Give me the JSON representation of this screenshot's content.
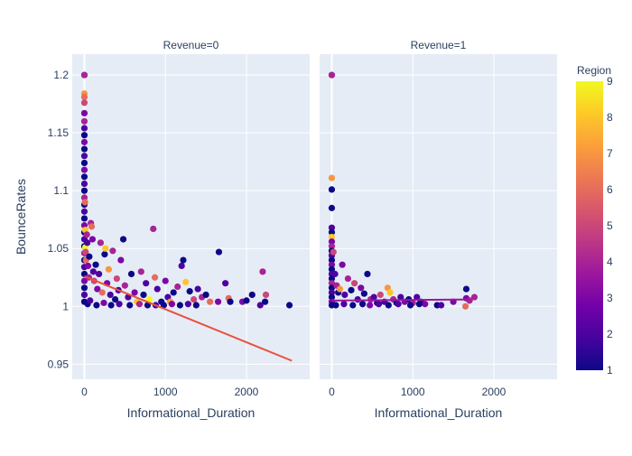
{
  "chart_data": {
    "type": "scatter",
    "facet_titles": [
      "Revenue=0",
      "Revenue=1"
    ],
    "xlabel": "Informational_Duration",
    "ylabel": "BounceRates",
    "xlim": [
      -150,
      2780
    ],
    "ylim": [
      0.937,
      1.218
    ],
    "x_ticks": [
      0,
      1000,
      2000
    ],
    "x_tick_labels": [
      "0",
      "1000",
      "2000"
    ],
    "y_ticks": [
      0.95,
      1,
      1.05,
      1.1,
      1.15,
      1.2
    ],
    "y_tick_labels": [
      "0.95",
      "1",
      "1.05",
      "1.1",
      "1.15",
      "1.2"
    ],
    "grid": true,
    "colorbar": {
      "title": "Region",
      "min": 1,
      "max": 9,
      "ticks": [
        1,
        2,
        3,
        4,
        5,
        6,
        7,
        8,
        9
      ],
      "tick_labels": [
        "1",
        "2",
        "3",
        "4",
        "5",
        "6",
        "7",
        "8",
        "9"
      ],
      "colorscale": [
        "#0d0887",
        "#46039f",
        "#7201a8",
        "#9c179e",
        "#bd3786",
        "#d8576b",
        "#ed7953",
        "#fb9f3a",
        "#fdca26",
        "#f0f921"
      ]
    },
    "series": [
      {
        "facet": "Revenue=0",
        "points": [
          [
            0,
            1.2,
            3
          ],
          [
            0,
            1.2,
            4
          ],
          [
            0,
            1.184,
            7
          ],
          [
            0,
            1.181,
            6
          ],
          [
            0,
            1.176,
            5
          ],
          [
            0,
            1.167,
            3
          ],
          [
            0,
            1.16,
            4
          ],
          [
            0,
            1.154,
            2
          ],
          [
            0,
            1.148,
            1
          ],
          [
            0,
            1.142,
            3
          ],
          [
            0,
            1.136,
            1
          ],
          [
            0,
            1.13,
            2
          ],
          [
            0,
            1.124,
            1
          ],
          [
            0,
            1.118,
            3
          ],
          [
            0,
            1.112,
            1
          ],
          [
            0,
            1.106,
            2
          ],
          [
            0,
            1.1,
            1
          ],
          [
            0,
            1.094,
            4
          ],
          [
            0,
            1.088,
            1
          ],
          [
            0,
            1.082,
            2
          ],
          [
            0,
            1.076,
            1
          ],
          [
            0,
            1.07,
            3
          ],
          [
            0,
            1.064,
            1
          ],
          [
            0,
            1.058,
            2
          ],
          [
            0,
            1.052,
            1
          ],
          [
            0,
            1.046,
            4
          ],
          [
            0,
            1.04,
            1
          ],
          [
            0,
            1.034,
            2
          ],
          [
            0,
            1.028,
            1
          ],
          [
            0,
            1.022,
            3
          ],
          [
            0,
            1.016,
            1
          ],
          [
            0,
            1.01,
            2
          ],
          [
            0,
            1.004,
            1
          ],
          [
            8,
            1.09,
            6
          ],
          [
            10,
            1.066,
            8
          ],
          [
            12,
            1.051,
            9
          ],
          [
            15,
            1.047,
            5
          ],
          [
            20,
            1.04,
            6
          ],
          [
            30,
            1.062,
            4
          ],
          [
            35,
            1.055,
            2
          ],
          [
            45,
            1.035,
            3
          ],
          [
            55,
            1.025,
            4
          ],
          [
            60,
            1.043,
            1
          ],
          [
            80,
            1.072,
            4
          ],
          [
            90,
            1.069,
            6
          ],
          [
            100,
            1.058,
            3
          ],
          [
            110,
            1.03,
            2
          ],
          [
            120,
            1.022,
            5
          ],
          [
            140,
            1.036,
            1
          ],
          [
            160,
            1.015,
            3
          ],
          [
            180,
            1.028,
            2
          ],
          [
            200,
            1.055,
            4
          ],
          [
            220,
            1.012,
            6
          ],
          [
            250,
            1.045,
            1
          ],
          [
            260,
            1.05,
            8
          ],
          [
            280,
            1.02,
            3
          ],
          [
            300,
            1.032,
            7
          ],
          [
            320,
            1.01,
            2
          ],
          [
            350,
            1.048,
            4
          ],
          [
            380,
            1.006,
            1
          ],
          [
            400,
            1.024,
            5
          ],
          [
            420,
            1.014,
            2
          ],
          [
            450,
            1.04,
            3
          ],
          [
            480,
            1.058,
            1
          ],
          [
            500,
            1.018,
            4
          ],
          [
            540,
            1.008,
            2
          ],
          [
            580,
            1.028,
            1
          ],
          [
            620,
            1.012,
            3
          ],
          [
            650,
            1.004,
            8
          ],
          [
            700,
            1.03,
            4
          ],
          [
            730,
            1.01,
            1
          ],
          [
            760,
            1.02,
            2
          ],
          [
            800,
            1.006,
            9
          ],
          [
            850,
            1.067,
            4
          ],
          [
            870,
            1.025,
            6
          ],
          [
            900,
            1.015,
            2
          ],
          [
            950,
            1.004,
            1
          ],
          [
            1000,
            1.022,
            3
          ],
          [
            1030,
            1.008,
            2
          ],
          [
            1060,
            1.004,
            7
          ],
          [
            1100,
            1.012,
            1
          ],
          [
            1150,
            1.017,
            4
          ],
          [
            1200,
            1.035,
            2
          ],
          [
            1220,
            1.04,
            1
          ],
          [
            1250,
            1.021,
            8
          ],
          [
            1300,
            1.013,
            1
          ],
          [
            1350,
            1.006,
            5
          ],
          [
            1400,
            1.015,
            2
          ],
          [
            1450,
            1.008,
            4
          ],
          [
            1500,
            1.01,
            1
          ],
          [
            1550,
            1.004,
            6
          ],
          [
            1650,
            1.004,
            3
          ],
          [
            1660,
            1.047,
            1
          ],
          [
            1740,
            1.02,
            2
          ],
          [
            1780,
            1.007,
            6
          ],
          [
            1800,
            1.004,
            1
          ],
          [
            1950,
            1.004,
            3
          ],
          [
            2000,
            1.005,
            1
          ],
          [
            2070,
            1.01,
            1
          ],
          [
            2170,
            1.001,
            2
          ],
          [
            2200,
            1.03,
            4
          ],
          [
            2240,
            1.01,
            5
          ],
          [
            2230,
            1.004,
            1
          ],
          [
            2530,
            1.001,
            1
          ],
          [
            40,
            1.002,
            1
          ],
          [
            70,
            1.005,
            2
          ],
          [
            150,
            1.001,
            1
          ],
          [
            240,
            1.003,
            3
          ],
          [
            330,
            1.001,
            1
          ],
          [
            430,
            1.002,
            2
          ],
          [
            560,
            1.001,
            1
          ],
          [
            680,
            1.002,
            4
          ],
          [
            780,
            1.001,
            1
          ],
          [
            880,
            1.001,
            2
          ],
          [
            980,
            1.001,
            1
          ],
          [
            1080,
            1.002,
            3
          ],
          [
            1180,
            1.001,
            1
          ],
          [
            1280,
            1.002,
            2
          ],
          [
            1380,
            1.001,
            1
          ]
        ],
        "trendline": {
          "x": [
            0,
            2560
          ],
          "y": [
            1.026,
            0.953
          ],
          "color": "#e8513e"
        }
      },
      {
        "facet": "Revenue=1",
        "points": [
          [
            0,
            1.2,
            3
          ],
          [
            0,
            1.2,
            4
          ],
          [
            0,
            1.111,
            7
          ],
          [
            0,
            1.101,
            1
          ],
          [
            0,
            1.085,
            1
          ],
          [
            0,
            1.068,
            2
          ],
          [
            0,
            1.064,
            1
          ],
          [
            0,
            1.06,
            8
          ],
          [
            0,
            1.056,
            3
          ],
          [
            0,
            1.052,
            4
          ],
          [
            0,
            1.048,
            1
          ],
          [
            0,
            1.044,
            2
          ],
          [
            0,
            1.04,
            1
          ],
          [
            0,
            1.036,
            3
          ],
          [
            0,
            1.032,
            1
          ],
          [
            0,
            1.028,
            2
          ],
          [
            0,
            1.024,
            1
          ],
          [
            0,
            1.02,
            4
          ],
          [
            0,
            1.016,
            1
          ],
          [
            0,
            1.012,
            2
          ],
          [
            0,
            1.008,
            1
          ],
          [
            0,
            1.004,
            3
          ],
          [
            0,
            1.001,
            1
          ],
          [
            20,
            1.047,
            5
          ],
          [
            40,
            1.028,
            2
          ],
          [
            60,
            1.018,
            4
          ],
          [
            80,
            1.012,
            1
          ],
          [
            100,
            1.015,
            7
          ],
          [
            130,
            1.036,
            3
          ],
          [
            160,
            1.01,
            2
          ],
          [
            200,
            1.024,
            4
          ],
          [
            240,
            1.014,
            1
          ],
          [
            280,
            1.02,
            5
          ],
          [
            320,
            1.006,
            2
          ],
          [
            360,
            1.016,
            3
          ],
          [
            400,
            1.011,
            1
          ],
          [
            440,
            1.028,
            1
          ],
          [
            480,
            1.006,
            4
          ],
          [
            520,
            1.008,
            2
          ],
          [
            560,
            1.003,
            1
          ],
          [
            600,
            1.01,
            5
          ],
          [
            650,
            1.004,
            2
          ],
          [
            690,
            1.016,
            7
          ],
          [
            720,
            1.012,
            8
          ],
          [
            760,
            1.006,
            4
          ],
          [
            800,
            1.003,
            1
          ],
          [
            850,
            1.008,
            2
          ],
          [
            900,
            1.004,
            3
          ],
          [
            950,
            1.006,
            1
          ],
          [
            1000,
            1.003,
            4
          ],
          [
            1050,
            1.008,
            2
          ],
          [
            1100,
            1.004,
            1
          ],
          [
            1150,
            1.002,
            3
          ],
          [
            1300,
            1.001,
            1
          ],
          [
            1350,
            1.001,
            2
          ],
          [
            1500,
            1.004,
            3
          ],
          [
            1650,
            1.0,
            6
          ],
          [
            1660,
            1.015,
            1
          ],
          [
            1660,
            1.007,
            3
          ],
          [
            1700,
            1.005,
            4
          ],
          [
            1760,
            1.008,
            4
          ],
          [
            50,
            1.001,
            1
          ],
          [
            150,
            1.002,
            2
          ],
          [
            260,
            1.001,
            1
          ],
          [
            380,
            1.002,
            1
          ],
          [
            470,
            1.001,
            3
          ],
          [
            580,
            1.002,
            2
          ],
          [
            700,
            1.001,
            1
          ],
          [
            820,
            1.002,
            2
          ],
          [
            970,
            1.001,
            1
          ],
          [
            1080,
            1.002,
            1
          ]
        ],
        "trendline": {
          "x": [
            0,
            1700
          ],
          "y": [
            1.005,
            1.006
          ],
          "color": "#9c179e"
        }
      }
    ]
  }
}
